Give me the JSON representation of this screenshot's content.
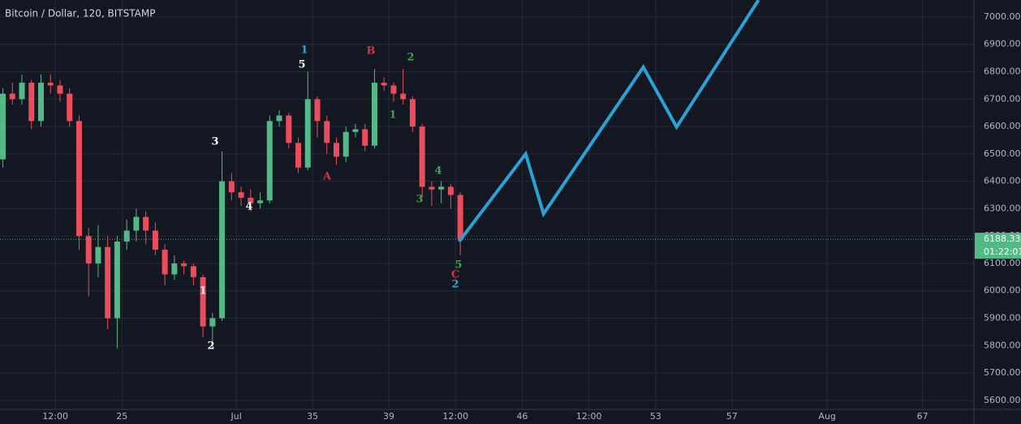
{
  "chart_data": {
    "type": "candlestick",
    "title": "Bitcoin / Dollar, 120, BITSTAMP",
    "up_color": "#53b987",
    "down_color": "#eb4d5c",
    "grid": true,
    "xlim": [
      18.6,
      69.7
    ],
    "ylim": [
      5567,
      7062
    ],
    "xticks": [
      {
        "value": 21.5,
        "label": "12:00"
      },
      25,
      {
        "value": 31,
        "label": "Jul"
      },
      35,
      39,
      {
        "value": 42.5,
        "label": "12:00"
      },
      46,
      {
        "value": 49.5,
        "label": "12:00"
      },
      53,
      57,
      {
        "value": 62,
        "label": "Aug"
      },
      67
    ],
    "yticks": [
      {
        "value": 5600,
        "label": "5600.00"
      },
      {
        "value": 5700,
        "label": "5700.00"
      },
      {
        "value": 5800,
        "label": "5800.00"
      },
      {
        "value": 5900,
        "label": "5900.00"
      },
      {
        "value": 6000,
        "label": "6000.00"
      },
      {
        "value": 6100,
        "label": "6100.00"
      },
      {
        "value": 6200,
        "label": "6200.00"
      },
      {
        "value": 6300,
        "label": "6300.00"
      },
      {
        "value": 6400,
        "label": "6400.00"
      },
      {
        "value": 6500,
        "label": "6500.00"
      },
      {
        "value": 6600,
        "label": "6600.00"
      },
      {
        "value": 6700,
        "label": "6700.00"
      },
      {
        "value": 6800,
        "label": "6800.00"
      },
      {
        "value": 6900,
        "label": "6900.00"
      },
      {
        "value": 7000,
        "label": "7000.00"
      }
    ],
    "candles": {
      "x": [
        18.75,
        19.25,
        19.75,
        20.25,
        20.75,
        21.25,
        21.75,
        22.25,
        22.75,
        23.25,
        23.75,
        24.25,
        24.75,
        25.25,
        25.75,
        26.25,
        26.75,
        27.25,
        27.75,
        28.25,
        28.75,
        29.25,
        29.75,
        30.25,
        30.75,
        31.25,
        31.75,
        32.25,
        32.75,
        33.25,
        33.75,
        34.25,
        34.75,
        35.25,
        35.75,
        36.25,
        36.75,
        37.25,
        37.75,
        38.25,
        38.75,
        39.25,
        39.75,
        40.25,
        40.75,
        41.25,
        41.75,
        42.25,
        42.75
      ],
      "open": [
        6480,
        6720,
        6700,
        6760,
        6620,
        6760,
        6750,
        6720,
        6620,
        6200,
        6100,
        6160,
        5900,
        6180,
        6220,
        6270,
        6220,
        6150,
        6060,
        6100,
        6090,
        6050,
        5870,
        5900,
        6400,
        6360,
        6340,
        6320,
        6330,
        6620,
        6640,
        6540,
        6450,
        6700,
        6620,
        6540,
        6490,
        6580,
        6590,
        6530,
        6760,
        6750,
        6720,
        6700,
        6600,
        6380,
        6370,
        6380,
        6350
      ],
      "high": [
        6740,
        6760,
        6790,
        6770,
        6790,
        6790,
        6770,
        6740,
        6640,
        6230,
        6240,
        6200,
        6200,
        6260,
        6300,
        6290,
        6250,
        6170,
        6130,
        6110,
        6100,
        6060,
        5920,
        6510,
        6430,
        6380,
        6370,
        6360,
        6640,
        6660,
        6650,
        6560,
        6800,
        6710,
        6640,
        6560,
        6600,
        6610,
        6610,
        6810,
        6780,
        6760,
        6810,
        6710,
        6610,
        6400,
        6400,
        6390,
        6360
      ],
      "low": [
        6450,
        6680,
        6680,
        6590,
        6600,
        6720,
        6690,
        6600,
        6150,
        5980,
        6050,
        5860,
        5790,
        6150,
        6180,
        6170,
        6130,
        6020,
        6040,
        6060,
        6020,
        5830,
        5790,
        5890,
        6330,
        6310,
        6290,
        6300,
        6320,
        6600,
        6520,
        6430,
        6440,
        6560,
        6500,
        6460,
        6470,
        6560,
        6510,
        6520,
        6730,
        6690,
        6680,
        6580,
        6340,
        6310,
        6320,
        6300,
        6130
      ],
      "close": [
        6720,
        6700,
        6760,
        6620,
        6760,
        6750,
        6720,
        6620,
        6200,
        6100,
        6160,
        5900,
        6180,
        6220,
        6270,
        6220,
        6150,
        6060,
        6100,
        6090,
        6050,
        5870,
        5900,
        6400,
        6360,
        6340,
        6320,
        6330,
        6620,
        6640,
        6540,
        6450,
        6700,
        6620,
        6540,
        6490,
        6580,
        6590,
        6530,
        6760,
        6750,
        6720,
        6700,
        6600,
        6380,
        6370,
        6380,
        6350,
        6188.33
      ]
    },
    "projection": {
      "color": "#29a3d6",
      "x": [
        42.69,
        46.18,
        47.12,
        52.35,
        54.1,
        58.4
      ],
      "values": [
        6180,
        6500,
        6281,
        6817,
        6598,
        7062
      ]
    },
    "last_price": 6188.33,
    "countdown": "01:22:01",
    "wave_labels": [
      "1",
      "5",
      "B",
      "2",
      "3",
      "4",
      "1",
      "2",
      "A",
      "1",
      "4",
      "3",
      "5",
      "C",
      "2"
    ]
  }
}
